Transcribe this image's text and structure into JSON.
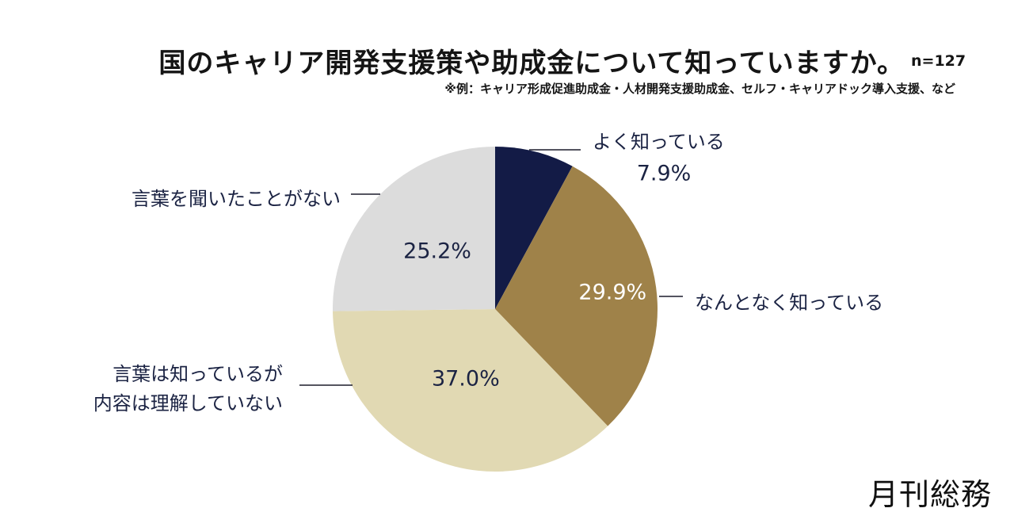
{
  "header": {
    "title": "国のキャリア開発支援策や助成金について知っていますか。",
    "sample_size": "n=127",
    "note": "※例：キャリア形成促進助成金・人材開発支援助成金、セルフ・キャリアドック導入支援、など"
  },
  "chart_data": {
    "type": "pie",
    "title": "国のキャリア開発支援策や助成金について知っていますか。",
    "slices": [
      {
        "label": "よく知っている",
        "value": 7.9,
        "value_label": "7.9%",
        "color": "#131b46",
        "label_color": "#1b2343"
      },
      {
        "label": "なんとなく知っている",
        "value": 29.9,
        "value_label": "29.9%",
        "color": "#9f8249",
        "label_color": "#ffffff"
      },
      {
        "label": "言葉は知っているが\n内容は理解していない",
        "value": 37.0,
        "value_label": "37.0%",
        "color": "#e1d9b3",
        "label_color": "#1b2343"
      },
      {
        "label": "言葉を聞いたことがない",
        "value": 25.2,
        "value_label": "25.2%",
        "color": "#dcdcdc",
        "label_color": "#1b2343"
      }
    ],
    "start_angle_deg": 0,
    "direction": "clockwise"
  },
  "brand": {
    "logo_text": "月刊総務"
  }
}
